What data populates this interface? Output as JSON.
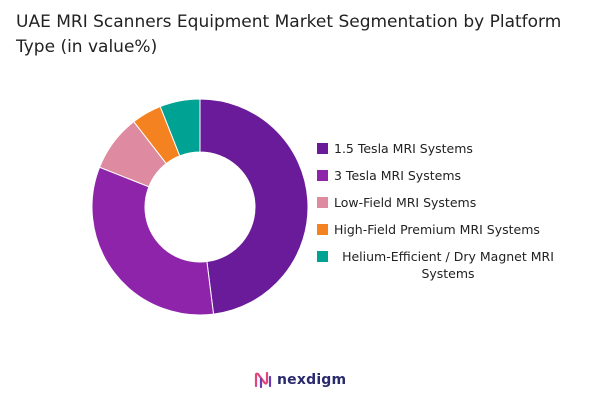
{
  "title": "UAE MRI Scanners Equipment Market Segmentation by Platform Type (in value%)",
  "brand": {
    "name": "nexdigm"
  },
  "chart_data": {
    "type": "pie",
    "subtype": "donut",
    "title": "UAE MRI Scanners Equipment Market Segmentation by Platform Type (in value%)",
    "legend_position": "right",
    "categories": [
      "1.5 Tesla MRI Systems",
      "3 Tesla MRI Systems",
      "Low-Field MRI Systems",
      "High-Field Premium MRI Systems",
      "Helium-Efficient / Dry Magnet MRI Systems"
    ],
    "values": [
      48,
      33,
      8.5,
      4.5,
      6
    ],
    "colors": [
      "#6a1b9a",
      "#8e24aa",
      "#de8aa0",
      "#f58220",
      "#00a393"
    ],
    "start_angle": "top",
    "direction": "clockwise"
  }
}
